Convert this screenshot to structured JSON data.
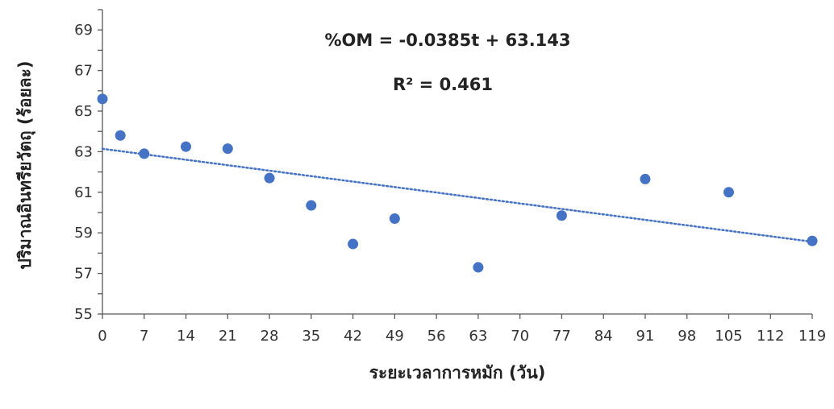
{
  "chart_data": {
    "type": "scatter",
    "title": "",
    "xlabel": "ระยะเวลาการหมัก (วัน)",
    "ylabel": "ปริมาณอินทรียวัตถุ (ร้อยละ)",
    "xlim": [
      0,
      119
    ],
    "ylim": [
      55,
      70
    ],
    "x_ticks": [
      "0",
      "7",
      "14",
      "21",
      "28",
      "35",
      "42",
      "49",
      "56",
      "63",
      "70",
      "77",
      "84",
      "91",
      "98",
      "105",
      "112",
      "119"
    ],
    "y_ticks": [
      "55",
      "57",
      "59",
      "61",
      "63",
      "65",
      "67",
      "69"
    ],
    "grid": false,
    "legend": "none",
    "point_color": "#4472C4",
    "trendline_color": "#4472C4",
    "series": [
      {
        "x": [
          0,
          3,
          7,
          14,
          21,
          28,
          35,
          42,
          49,
          63,
          77,
          91,
          105,
          119
        ],
        "y": [
          65.6,
          63.8,
          62.9,
          63.25,
          63.15,
          61.7,
          60.35,
          58.45,
          59.7,
          57.3,
          59.85,
          61.65,
          61.0,
          58.6
        ]
      }
    ],
    "trendline": {
      "slope": -0.0385,
      "intercept": 63.143
    },
    "annotations": [
      "%OM  = -0.0385t + 63.143",
      "R² = 0.461"
    ]
  }
}
